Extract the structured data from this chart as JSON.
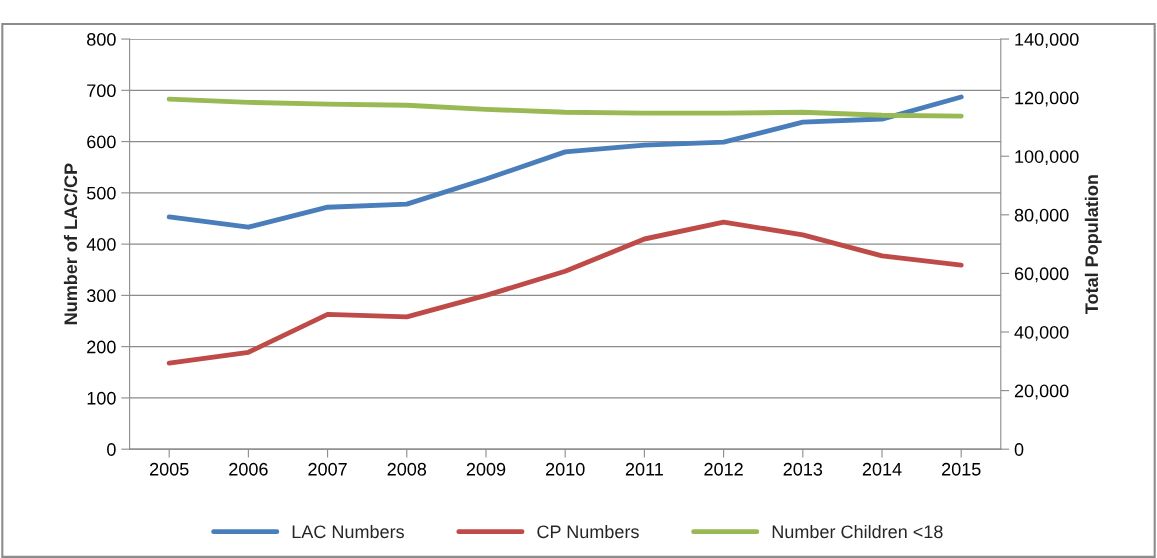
{
  "chart_data": {
    "type": "line",
    "categories": [
      "2005",
      "2006",
      "2007",
      "2008",
      "2009",
      "2010",
      "2011",
      "2012",
      "2013",
      "2014",
      "2015"
    ],
    "ylabel": "Number of LAC/CP",
    "y2label": "Total Population",
    "series": [
      {
        "name": "LAC Numbers",
        "color": "#4a7ebb",
        "values": [
          453,
          433,
          472,
          478,
          527,
          580,
          593,
          599,
          638,
          644,
          687
        ]
      },
      {
        "name": "CP Numbers",
        "color": "#be4b48",
        "values": [
          168,
          189,
          263,
          258,
          300,
          347,
          410,
          443,
          418,
          377,
          359
        ]
      },
      {
        "name": "Number Children <18",
        "color": "#98b954",
        "axis": "y2",
        "values": [
          119500,
          118400,
          117800,
          117400,
          116000,
          115000,
          114700,
          114700,
          115000,
          114000,
          113700
        ]
      }
    ],
    "ylim": [
      0,
      800
    ],
    "yticks": [
      0,
      100,
      200,
      300,
      400,
      500,
      600,
      700,
      800
    ],
    "y2lim": [
      0,
      140000
    ],
    "y2ticks": [
      {
        "value": 0,
        "label": "0"
      },
      {
        "value": 20000,
        "label": "20,000"
      },
      {
        "value": 40000,
        "label": "40,000"
      },
      {
        "value": 60000,
        "label": "60,000"
      },
      {
        "value": 80000,
        "label": "80,000"
      },
      {
        "value": 100000,
        "label": "100,000"
      },
      {
        "value": 120000,
        "label": "120,000"
      },
      {
        "value": 140000,
        "label": "140,000"
      }
    ],
    "grid": "y",
    "legend": "bottom",
    "marker": "none",
    "line_style": "solid"
  }
}
